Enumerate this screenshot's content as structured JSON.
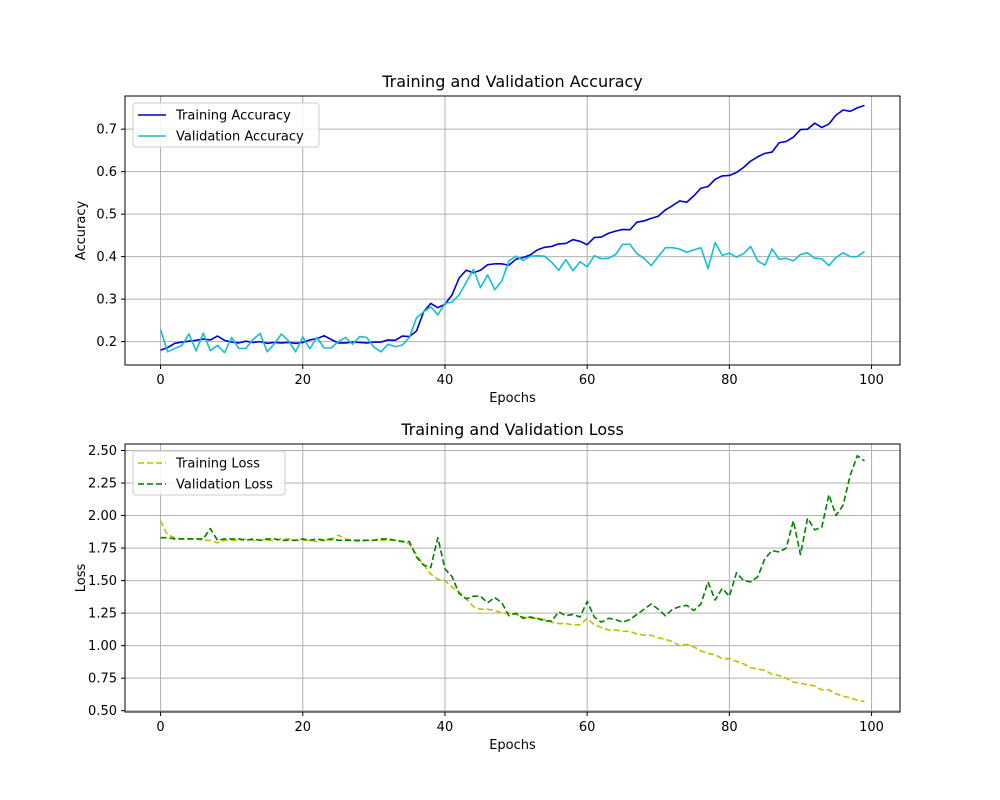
{
  "chart_data": [
    {
      "type": "line",
      "title": "Training and Validation Accuracy",
      "xlabel": "Epochs",
      "ylabel": "Accuracy",
      "xlim": [
        -5,
        104
      ],
      "ylim": [
        0.145,
        0.778
      ],
      "xticks": [
        0,
        20,
        40,
        60,
        80,
        100
      ],
      "yticks": [
        0.2,
        0.3,
        0.4,
        0.5,
        0.6,
        0.7
      ],
      "ytick_labels": [
        "0.2",
        "0.3",
        "0.4",
        "0.5",
        "0.6",
        "0.7"
      ],
      "grid": true,
      "legend_position": "upper-left",
      "x": [
        0,
        1,
        2,
        3,
        4,
        5,
        6,
        7,
        8,
        9,
        10,
        11,
        12,
        13,
        14,
        15,
        16,
        17,
        18,
        19,
        20,
        21,
        22,
        23,
        24,
        25,
        26,
        27,
        28,
        29,
        30,
        31,
        32,
        33,
        34,
        35,
        36,
        37,
        38,
        39,
        40,
        41,
        42,
        43,
        44,
        45,
        46,
        47,
        48,
        49,
        50,
        51,
        52,
        53,
        54,
        55,
        56,
        57,
        58,
        59,
        60,
        61,
        62,
        63,
        64,
        65,
        66,
        67,
        68,
        69,
        70,
        71,
        72,
        73,
        74,
        75,
        76,
        77,
        78,
        79,
        80,
        81,
        82,
        83,
        84,
        85,
        86,
        87,
        88,
        89,
        90,
        91,
        92,
        93,
        94,
        95,
        96,
        97,
        98,
        99
      ],
      "series": [
        {
          "name": "Training Accuracy",
          "color": "#0000cc",
          "style": "solid",
          "values": [
            0.18,
            0.186,
            0.196,
            0.199,
            0.201,
            0.203,
            0.206,
            0.204,
            0.213,
            0.203,
            0.199,
            0.197,
            0.201,
            0.198,
            0.2,
            0.196,
            0.198,
            0.197,
            0.198,
            0.196,
            0.198,
            0.204,
            0.207,
            0.214,
            0.205,
            0.197,
            0.197,
            0.199,
            0.198,
            0.197,
            0.199,
            0.199,
            0.204,
            0.203,
            0.213,
            0.212,
            0.225,
            0.27,
            0.29,
            0.28,
            0.288,
            0.31,
            0.35,
            0.368,
            0.362,
            0.368,
            0.381,
            0.383,
            0.383,
            0.38,
            0.394,
            0.398,
            0.404,
            0.416,
            0.422,
            0.424,
            0.43,
            0.431,
            0.44,
            0.436,
            0.428,
            0.445,
            0.446,
            0.455,
            0.46,
            0.464,
            0.463,
            0.481,
            0.484,
            0.49,
            0.495,
            0.51,
            0.52,
            0.531,
            0.528,
            0.543,
            0.561,
            0.565,
            0.582,
            0.59,
            0.591,
            0.598,
            0.61,
            0.625,
            0.635,
            0.643,
            0.646,
            0.668,
            0.671,
            0.681,
            0.699,
            0.7,
            0.714,
            0.704,
            0.712,
            0.733,
            0.745,
            0.742,
            0.75,
            0.756
          ]
        },
        {
          "name": "Validation Accuracy",
          "color": "#17becf",
          "style": "solid",
          "values": [
            0.228,
            0.176,
            0.184,
            0.191,
            0.218,
            0.178,
            0.22,
            0.179,
            0.191,
            0.174,
            0.21,
            0.184,
            0.184,
            0.205,
            0.219,
            0.176,
            0.195,
            0.218,
            0.202,
            0.176,
            0.211,
            0.183,
            0.21,
            0.185,
            0.185,
            0.2,
            0.21,
            0.194,
            0.212,
            0.21,
            0.187,
            0.176,
            0.194,
            0.188,
            0.192,
            0.21,
            0.256,
            0.27,
            0.282,
            0.263,
            0.29,
            0.293,
            0.31,
            0.34,
            0.37,
            0.327,
            0.357,
            0.322,
            0.343,
            0.39,
            0.401,
            0.391,
            0.401,
            0.402,
            0.401,
            0.387,
            0.368,
            0.393,
            0.367,
            0.388,
            0.376,
            0.402,
            0.395,
            0.396,
            0.405,
            0.429,
            0.429,
            0.407,
            0.396,
            0.379,
            0.4,
            0.421,
            0.421,
            0.418,
            0.41,
            0.416,
            0.421,
            0.372,
            0.433,
            0.403,
            0.408,
            0.399,
            0.407,
            0.424,
            0.39,
            0.38,
            0.418,
            0.394,
            0.396,
            0.39,
            0.405,
            0.409,
            0.396,
            0.395,
            0.379,
            0.398,
            0.409,
            0.4,
            0.4,
            0.412
          ]
        }
      ]
    },
    {
      "type": "line",
      "title": "Training and Validation Loss",
      "xlabel": "Epochs",
      "ylabel": "Loss",
      "xlim": [
        -5,
        104
      ],
      "ylim": [
        0.49,
        2.55
      ],
      "xticks": [
        0,
        20,
        40,
        60,
        80,
        100
      ],
      "yticks": [
        0.5,
        0.75,
        1.0,
        1.25,
        1.5,
        1.75,
        2.0,
        2.25,
        2.5
      ],
      "ytick_labels": [
        "0.50",
        "0.75",
        "1.00",
        "1.25",
        "1.50",
        "1.75",
        "2.00",
        "2.25",
        "2.50"
      ],
      "grid": true,
      "legend_position": "upper-left",
      "x": [
        0,
        1,
        2,
        3,
        4,
        5,
        6,
        7,
        8,
        9,
        10,
        11,
        12,
        13,
        14,
        15,
        16,
        17,
        18,
        19,
        20,
        21,
        22,
        23,
        24,
        25,
        26,
        27,
        28,
        29,
        30,
        31,
        32,
        33,
        34,
        35,
        36,
        37,
        38,
        39,
        40,
        41,
        42,
        43,
        44,
        45,
        46,
        47,
        48,
        49,
        50,
        51,
        52,
        53,
        54,
        55,
        56,
        57,
        58,
        59,
        60,
        61,
        62,
        63,
        64,
        65,
        66,
        67,
        68,
        69,
        70,
        71,
        72,
        73,
        74,
        75,
        76,
        77,
        78,
        79,
        80,
        81,
        82,
        83,
        84,
        85,
        86,
        87,
        88,
        89,
        90,
        91,
        92,
        93,
        94,
        95,
        96,
        97,
        98,
        99
      ],
      "series": [
        {
          "name": "Training Loss",
          "color": "#bfbf00",
          "style": "dashed",
          "values": [
            1.96,
            1.85,
            1.83,
            1.82,
            1.82,
            1.82,
            1.81,
            1.81,
            1.79,
            1.81,
            1.81,
            1.81,
            1.82,
            1.81,
            1.81,
            1.81,
            1.81,
            1.82,
            1.82,
            1.81,
            1.81,
            1.81,
            1.8,
            1.81,
            1.81,
            1.85,
            1.82,
            1.81,
            1.8,
            1.81,
            1.81,
            1.81,
            1.81,
            1.81,
            1.8,
            1.78,
            1.7,
            1.62,
            1.55,
            1.51,
            1.5,
            1.45,
            1.41,
            1.36,
            1.3,
            1.28,
            1.28,
            1.27,
            1.25,
            1.25,
            1.24,
            1.22,
            1.21,
            1.21,
            1.2,
            1.18,
            1.17,
            1.17,
            1.16,
            1.16,
            1.21,
            1.16,
            1.14,
            1.12,
            1.12,
            1.11,
            1.11,
            1.09,
            1.08,
            1.08,
            1.06,
            1.05,
            1.03,
            1.0,
            1.01,
            0.99,
            0.96,
            0.94,
            0.93,
            0.9,
            0.9,
            0.88,
            0.86,
            0.83,
            0.82,
            0.81,
            0.78,
            0.77,
            0.75,
            0.72,
            0.71,
            0.7,
            0.69,
            0.66,
            0.66,
            0.63,
            0.61,
            0.6,
            0.58,
            0.57
          ]
        },
        {
          "name": "Validation Loss",
          "color": "#008000",
          "style": "dashed",
          "values": [
            1.83,
            1.83,
            1.82,
            1.82,
            1.82,
            1.82,
            1.82,
            1.9,
            1.81,
            1.82,
            1.82,
            1.82,
            1.81,
            1.82,
            1.81,
            1.82,
            1.82,
            1.81,
            1.81,
            1.81,
            1.82,
            1.81,
            1.82,
            1.81,
            1.82,
            1.81,
            1.81,
            1.81,
            1.81,
            1.81,
            1.81,
            1.82,
            1.82,
            1.81,
            1.8,
            1.8,
            1.68,
            1.62,
            1.6,
            1.83,
            1.59,
            1.53,
            1.4,
            1.36,
            1.38,
            1.38,
            1.33,
            1.37,
            1.33,
            1.23,
            1.25,
            1.21,
            1.22,
            1.21,
            1.19,
            1.19,
            1.26,
            1.23,
            1.24,
            1.22,
            1.34,
            1.22,
            1.18,
            1.21,
            1.2,
            1.18,
            1.2,
            1.24,
            1.28,
            1.32,
            1.28,
            1.23,
            1.28,
            1.3,
            1.31,
            1.27,
            1.32,
            1.49,
            1.35,
            1.44,
            1.38,
            1.56,
            1.5,
            1.49,
            1.53,
            1.67,
            1.73,
            1.72,
            1.75,
            1.96,
            1.7,
            1.98,
            1.89,
            1.91,
            2.16,
            2.0,
            2.08,
            2.31,
            2.46,
            2.42
          ]
        }
      ]
    }
  ]
}
